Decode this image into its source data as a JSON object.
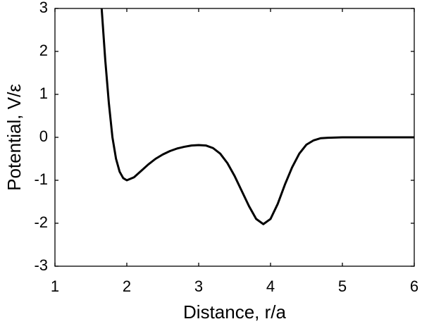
{
  "chart_data": {
    "type": "line",
    "xlabel": "Distance, r/a",
    "ylabel": "Potential, V/ε",
    "x": [
      1.65,
      1.7,
      1.75,
      1.8,
      1.85,
      1.9,
      1.95,
      2.0,
      2.1,
      2.2,
      2.3,
      2.4,
      2.5,
      2.6,
      2.7,
      2.8,
      2.9,
      3.0,
      3.1,
      3.2,
      3.3,
      3.4,
      3.5,
      3.6,
      3.7,
      3.8,
      3.9,
      4.0,
      4.1,
      4.2,
      4.3,
      4.4,
      4.5,
      4.6,
      4.7,
      4.8,
      5.0,
      5.5,
      6.0
    ],
    "values": [
      3,
      1.8,
      0.8,
      0.0,
      -0.5,
      -0.8,
      -0.95,
      -1.0,
      -0.93,
      -0.78,
      -0.63,
      -0.5,
      -0.4,
      -0.32,
      -0.26,
      -0.22,
      -0.19,
      -0.18,
      -0.19,
      -0.25,
      -0.38,
      -0.6,
      -0.9,
      -1.25,
      -1.6,
      -1.9,
      -2.02,
      -1.9,
      -1.55,
      -1.1,
      -0.7,
      -0.38,
      -0.17,
      -0.07,
      -0.02,
      -0.01,
      0,
      0,
      0
    ],
    "color": "#000000",
    "xlim": [
      1,
      6
    ],
    "xticks": [
      1,
      2,
      3,
      4,
      5,
      6
    ],
    "ylim": [
      -3,
      3
    ],
    "yticks": [
      -3,
      -2,
      -1,
      0,
      1,
      2,
      3
    ]
  }
}
